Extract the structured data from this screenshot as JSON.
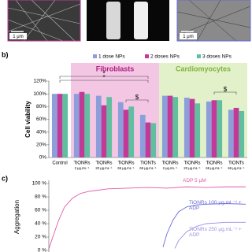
{
  "panel_labels": [
    "b)",
    "c)"
  ],
  "scale_bars": [
    "1 μm",
    "1 μm"
  ],
  "chart_data": [
    {
      "type": "bar",
      "y_label": "Cell viability",
      "categories": [
        "Control",
        "TiONRs",
        "TiONRs",
        "TiONRs",
        "TiONTs",
        "TiONRs",
        "TiONRs",
        "TiONRs",
        "TiONTs"
      ],
      "category_sublabels": [
        null,
        "2 μg.mL⁻¹",
        "20 μg.mL⁻¹",
        "66 μg.mL⁻¹",
        "66 μg.mL⁻¹",
        "2 μg.mL⁻¹",
        "20 μg.mL⁻¹",
        "66 μg.mL⁻¹",
        "66 μg.mL⁻¹"
      ],
      "groups": [
        {
          "name": "Fibroblasts",
          "color": "#f3c6e4"
        },
        {
          "name": "Cardiomyocytes",
          "color": "#e2f1c9"
        }
      ],
      "series": [
        {
          "name": "1 dose NPs",
          "color": "#8c9fdb",
          "values": [
            100,
            100,
            97,
            87,
            67,
            97,
            94,
            88,
            75
          ]
        },
        {
          "name": "2 doses NPs",
          "color": "#c23a98",
          "values": [
            100,
            103,
            82,
            75,
            55,
            97,
            92,
            90,
            78
          ]
        },
        {
          "name": "3 doses NPs",
          "color": "#5fbf9f",
          "values": [
            100,
            100,
            95,
            80,
            54,
            95,
            85,
            90,
            73
          ]
        }
      ],
      "annotations": [
        "*",
        "*",
        "$",
        "$"
      ],
      "ylim": [
        0,
        120
      ],
      "yticks": [
        {
          "value": 0,
          "label": "0%"
        },
        {
          "value": 20,
          "label": "20%"
        },
        {
          "value": 40,
          "label": "40%"
        },
        {
          "value": 60,
          "label": "60%"
        },
        {
          "value": 80,
          "label": "80%"
        },
        {
          "value": 100,
          "label": "100%"
        },
        {
          "value": 120,
          "label": "120%"
        }
      ]
    },
    {
      "type": "line",
      "y_label": "Aggregation",
      "xlim": [
        0,
        100
      ],
      "series": [
        {
          "name": "ADP 5 μM",
          "color": "#e05aa8",
          "x": [
            0,
            2,
            5,
            8,
            12,
            16,
            20,
            25,
            30,
            40,
            50,
            60,
            70,
            80,
            90,
            100
          ],
          "values": [
            2,
            20,
            45,
            65,
            78,
            85,
            88,
            90,
            92,
            93,
            94,
            93,
            95,
            94,
            95,
            95
          ]
        },
        {
          "name": "TiONRs 100 μg.mL⁻¹ + ADP",
          "color": "#6a6ad8",
          "x": [
            58,
            60,
            63,
            66,
            70,
            75,
            80,
            90,
            100
          ],
          "values": [
            5,
            25,
            45,
            58,
            65,
            68,
            69,
            70,
            69
          ]
        },
        {
          "name": "TiONRs 250 μg.mL⁻¹ + ADP",
          "color": "#9a90e0",
          "x": [
            64,
            66,
            70,
            75,
            80,
            85,
            90,
            100
          ],
          "values": [
            3,
            15,
            28,
            36,
            40,
            41,
            42,
            42
          ]
        }
      ],
      "ylim": [
        0,
        100
      ],
      "yticks": [
        {
          "value": 0,
          "label": "0 %"
        },
        {
          "value": 20,
          "label": "20 %"
        },
        {
          "value": 40,
          "label": "40 %"
        },
        {
          "value": 60,
          "label": "60 %"
        },
        {
          "value": 80,
          "label": "80 %"
        },
        {
          "value": 100,
          "label": "100 %"
        }
      ]
    }
  ]
}
